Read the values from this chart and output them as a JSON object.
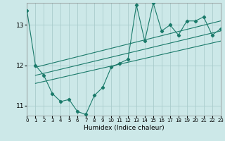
{
  "xlabel": "Humidex (Indice chaleur)",
  "bg_color": "#cce8e8",
  "line_color": "#1a7a6a",
  "grid_color": "#aacccc",
  "xlim": [
    0,
    23
  ],
  "ylim": [
    10.75,
    13.55
  ],
  "yticks": [
    11,
    12,
    13
  ],
  "xticks": [
    0,
    1,
    2,
    3,
    4,
    5,
    6,
    7,
    8,
    9,
    10,
    11,
    12,
    13,
    14,
    15,
    16,
    17,
    18,
    19,
    20,
    21,
    22,
    23
  ],
  "series": [
    {
      "x": [
        0,
        1,
        2,
        3,
        4,
        5,
        6,
        7,
        8,
        9,
        10,
        11,
        12,
        13,
        14,
        15,
        16,
        17,
        18,
        19,
        20,
        21,
        22,
        23
      ],
      "y": [
        13.35,
        12.0,
        11.75,
        11.3,
        11.1,
        11.15,
        10.85,
        10.78,
        11.25,
        11.45,
        11.95,
        12.05,
        12.15,
        13.5,
        12.6,
        13.55,
        12.85,
        13.0,
        12.75,
        13.1,
        13.1,
        13.2,
        12.75,
        12.9
      ]
    },
    {
      "x": [
        1,
        23
      ],
      "y": [
        11.95,
        13.1
      ]
    },
    {
      "x": [
        1,
        23
      ],
      "y": [
        11.75,
        12.85
      ]
    },
    {
      "x": [
        1,
        23
      ],
      "y": [
        11.55,
        12.6
      ]
    }
  ]
}
